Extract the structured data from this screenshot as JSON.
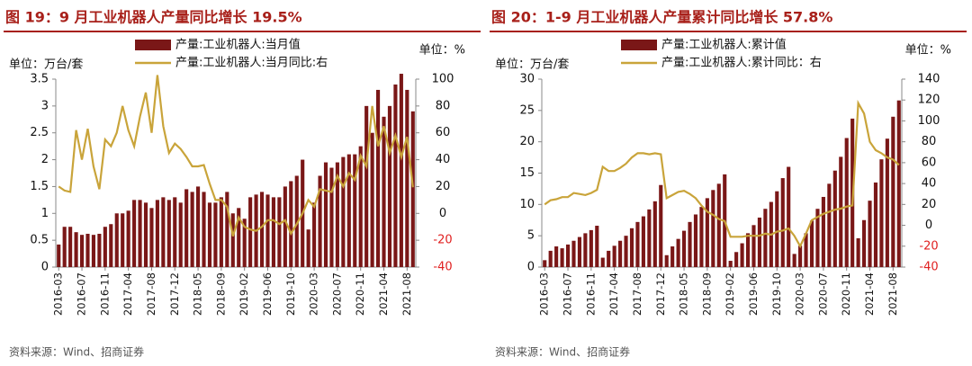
{
  "chart_data": [
    {
      "type": "bar-line",
      "title": "图 19：9 月工业机器人产量同比增长 19.5%",
      "y_unit": "单位：万台/套",
      "y2_unit": "单位：%",
      "source": "资料来源：Wind、招商证券",
      "categories": [
        "2016-03",
        null,
        null,
        null,
        "2016-07",
        null,
        null,
        null,
        "2016-11",
        null,
        null,
        null,
        "2017-04",
        null,
        null,
        null,
        "2017-08",
        null,
        null,
        null,
        "2017-12",
        null,
        null,
        null,
        "2018-05",
        null,
        null,
        null,
        "2018-09",
        null,
        null,
        null,
        "2019-02",
        null,
        null,
        null,
        "2019-06",
        null,
        null,
        null,
        "2019-10",
        null,
        null,
        null,
        "2020-03",
        null,
        null,
        null,
        "2020-07",
        null,
        null,
        null,
        "2020-11",
        null,
        null,
        null,
        "2021-04",
        null,
        null,
        null,
        "2021-08",
        null
      ],
      "series": [
        {
          "name": "产量:工业机器人:当月值",
          "type": "bar",
          "color": "#7a1717",
          "values": [
            0.42,
            0.75,
            0.75,
            0.65,
            0.6,
            0.62,
            0.6,
            0.62,
            0.75,
            0.8,
            1.0,
            1.0,
            1.05,
            1.25,
            1.25,
            1.2,
            1.1,
            1.25,
            1.3,
            1.25,
            1.3,
            1.2,
            1.45,
            1.4,
            1.5,
            1.4,
            1.2,
            1.2,
            1.3,
            1.4,
            1.0,
            1.1,
            0.9,
            1.3,
            1.35,
            1.4,
            1.35,
            1.3,
            1.3,
            1.5,
            1.6,
            1.7,
            2.0,
            0.7,
            1.2,
            1.7,
            1.95,
            1.85,
            1.95,
            2.05,
            2.1,
            2.1,
            2.25,
            3.0,
            2.5,
            3.3,
            2.8,
            3.0,
            3.4,
            3.6,
            3.3,
            2.9
          ]
        },
        {
          "name": "产量:工业机器人:当月同比:右",
          "type": "line",
          "axis": "y2",
          "color": "#c9a43a",
          "values": [
            20,
            17,
            16,
            62,
            40,
            63,
            35,
            18,
            55,
            50,
            60,
            80,
            62,
            50,
            72,
            90,
            60,
            103,
            65,
            45,
            52,
            48,
            42,
            35,
            35,
            36,
            22,
            10,
            10,
            5,
            -17,
            -3,
            -10,
            -12,
            -13,
            -10,
            -5,
            -5,
            -8,
            -5,
            -15,
            -8,
            0,
            10,
            5,
            18,
            17,
            16,
            28,
            20,
            30,
            25,
            43,
            35,
            80,
            50,
            65,
            45,
            58,
            42,
            57,
            19.5
          ]
        }
      ],
      "ylim": [
        0,
        3.5
      ],
      "yticks": [
        0,
        0.5,
        1,
        1.5,
        2,
        2.5,
        3,
        3.5
      ],
      "y2lim": [
        -40,
        100
      ],
      "y2ticks": [
        -40,
        -20,
        0,
        20,
        40,
        60,
        80,
        100
      ],
      "y2_negative_color": "#e02020"
    },
    {
      "type": "bar-line",
      "title": "图 20：1-9 月工业机器人产量累计同比增长 57.8%",
      "y_unit": "单位：万台/套",
      "y2_unit": "单位：%",
      "source": "资料来源：Wind、招商证券",
      "categories": [
        "2016-03",
        null,
        null,
        null,
        "2016-07",
        null,
        null,
        null,
        "2016-11",
        null,
        null,
        null,
        "2017-04",
        null,
        null,
        null,
        "2017-08",
        null,
        null,
        null,
        "2017-12",
        null,
        null,
        null,
        "2018-05",
        null,
        null,
        null,
        "2018-09",
        null,
        null,
        null,
        "2019-02",
        null,
        null,
        null,
        "2019-06",
        null,
        null,
        null,
        "2019-10",
        null,
        null,
        null,
        "2020-03",
        null,
        null,
        null,
        "2020-07",
        null,
        null,
        null,
        "2020-11",
        null,
        null,
        null,
        "2021-04",
        null,
        null,
        null,
        "2021-08",
        null
      ],
      "series": [
        {
          "name": "产量:工业机器人:累计值",
          "type": "bar",
          "color": "#7a1717",
          "values": [
            1.1,
            2.6,
            3.3,
            3.0,
            3.6,
            4.2,
            4.8,
            5.4,
            5.9,
            6.6,
            1.5,
            2.6,
            3.4,
            4.2,
            5.0,
            6.2,
            7.2,
            8.1,
            9.2,
            10.5,
            13.1,
            1.9,
            3.3,
            4.5,
            5.8,
            7.2,
            8.4,
            9.6,
            11.0,
            12.3,
            13.3,
            14.8,
            1.0,
            2.4,
            3.8,
            5.4,
            6.7,
            7.9,
            9.3,
            10.4,
            12.1,
            14.2,
            16.0,
            2.1,
            3.4,
            5.4,
            7.4,
            9.3,
            11.2,
            13.3,
            15.4,
            17.6,
            20.6,
            23.7,
            4.6,
            7.5,
            10.6,
            13.5,
            17.2,
            20.5,
            24.0,
            26.6
          ]
        },
        {
          "name": "产量:工业机器人:累计同比：右",
          "type": "line",
          "axis": "y2",
          "color": "#c9a43a",
          "values": [
            20,
            24,
            25,
            27,
            27,
            31,
            30,
            29,
            31,
            34,
            56,
            52,
            52,
            55,
            59,
            65,
            69,
            69,
            68,
            69,
            68,
            26,
            29,
            32,
            33,
            30,
            26,
            19,
            13,
            10,
            6,
            4,
            -11,
            -11,
            -11,
            -10,
            -10,
            -10,
            -8,
            -9,
            -6,
            -5,
            -3,
            -10,
            -20,
            -8,
            5,
            8,
            11,
            13,
            15,
            16,
            18,
            19,
            117,
            107,
            80,
            72,
            69,
            65,
            63,
            57.8
          ]
        }
      ],
      "ylim": [
        0,
        30
      ],
      "yticks": [
        0,
        5,
        10,
        15,
        20,
        25,
        30
      ],
      "y2lim": [
        -40,
        140
      ],
      "y2ticks": [
        -40,
        -20,
        0,
        20,
        40,
        60,
        80,
        100,
        120,
        140
      ],
      "y2_negative_color": "#e02020"
    }
  ]
}
